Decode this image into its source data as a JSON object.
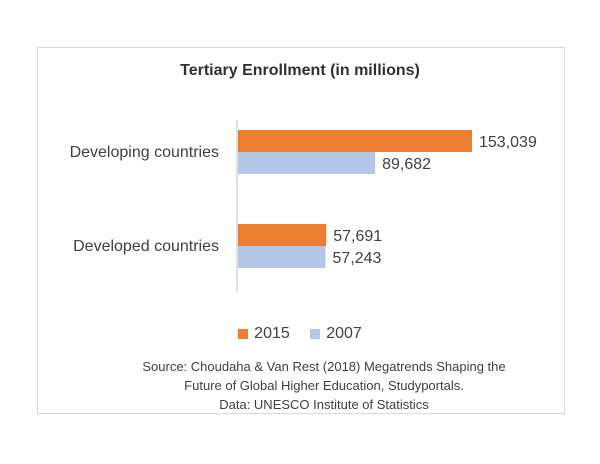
{
  "chart_data": {
    "type": "bar",
    "orientation": "horizontal",
    "title": "Tertiary Enrollment (in millions)",
    "categories": [
      "Developing countries",
      "Developed countries"
    ],
    "series": [
      {
        "name": "2015",
        "color": "#ed7d31",
        "values": [
          153039,
          57691
        ],
        "labels": [
          "153,039",
          "57,691"
        ]
      },
      {
        "name": "2007",
        "color": "#b4c7e7",
        "values": [
          89682,
          57243
        ],
        "labels": [
          "89,682",
          "57,243"
        ]
      }
    ],
    "xlim": [
      0,
      153039
    ],
    "grid": false,
    "legend": "bottom"
  },
  "legend": {
    "items": [
      "2015",
      "2007"
    ]
  },
  "source": {
    "line1": "Source: Choudaha & Van Rest (2018) Megatrends Shaping the",
    "line2": "Future of Global Higher Education, Studyportals.",
    "line3": "Data: UNESCO Institute of Statistics"
  }
}
